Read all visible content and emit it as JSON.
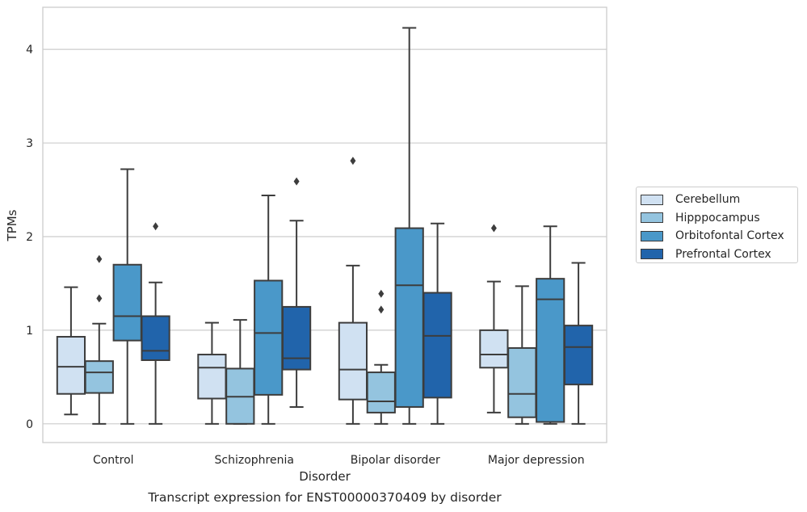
{
  "caption": "Transcript expression for ENST00000370409 by disorder",
  "chart_data": {
    "type": "box",
    "xlabel": "Disorder",
    "ylabel": "TPMs",
    "ylim": [
      -0.2,
      4.45
    ],
    "yticks": [
      0,
      1,
      2,
      3,
      4
    ],
    "categories": [
      "Control",
      "Schizophrenia",
      "Bipolar disorder",
      "Major depression"
    ],
    "grid": "horizontal",
    "legend_position": "right",
    "series": [
      {
        "name": "Cerebellum",
        "color": "#d0e1f2",
        "boxes": [
          {
            "whislo": 0.1,
            "q1": 0.32,
            "med": 0.61,
            "q3": 0.93,
            "whishi": 1.46,
            "fliers": []
          },
          {
            "whislo": 0.0,
            "q1": 0.27,
            "med": 0.6,
            "q3": 0.74,
            "whishi": 1.08,
            "fliers": []
          },
          {
            "whislo": 0.0,
            "q1": 0.26,
            "med": 0.58,
            "q3": 1.08,
            "whishi": 1.69,
            "fliers": [
              2.81
            ]
          },
          {
            "whislo": 0.12,
            "q1": 0.6,
            "med": 0.74,
            "q3": 1.0,
            "whishi": 1.52,
            "fliers": [
              2.09
            ]
          }
        ]
      },
      {
        "name": "Hipppocampus",
        "color": "#94c4df",
        "boxes": [
          {
            "whislo": 0.0,
            "q1": 0.33,
            "med": 0.55,
            "q3": 0.67,
            "whishi": 1.07,
            "fliers": [
              1.34,
              1.76
            ]
          },
          {
            "whislo": 0.0,
            "q1": 0.0,
            "med": 0.29,
            "q3": 0.59,
            "whishi": 1.11,
            "fliers": []
          },
          {
            "whislo": 0.0,
            "q1": 0.12,
            "med": 0.24,
            "q3": 0.55,
            "whishi": 0.63,
            "fliers": [
              1.22,
              1.39
            ]
          },
          {
            "whislo": 0.0,
            "q1": 0.07,
            "med": 0.32,
            "q3": 0.81,
            "whishi": 1.47,
            "fliers": []
          }
        ]
      },
      {
        "name": "Orbitofontal Cortex",
        "color": "#4a98c9",
        "boxes": [
          {
            "whislo": 0.0,
            "q1": 0.89,
            "med": 1.15,
            "q3": 1.7,
            "whishi": 2.72,
            "fliers": []
          },
          {
            "whislo": 0.0,
            "q1": 0.31,
            "med": 0.97,
            "q3": 1.53,
            "whishi": 2.44,
            "fliers": []
          },
          {
            "whislo": 0.0,
            "q1": 0.18,
            "med": 1.48,
            "q3": 2.09,
            "whishi": 4.23,
            "fliers": []
          },
          {
            "whislo": 0.0,
            "q1": 0.02,
            "med": 1.33,
            "q3": 1.55,
            "whishi": 2.11,
            "fliers": []
          }
        ]
      },
      {
        "name": "Prefrontal Cortex",
        "color": "#2164ab",
        "boxes": [
          {
            "whislo": 0.0,
            "q1": 0.68,
            "med": 0.78,
            "q3": 1.15,
            "whishi": 1.51,
            "fliers": [
              2.11
            ]
          },
          {
            "whislo": 0.18,
            "q1": 0.58,
            "med": 0.7,
            "q3": 1.25,
            "whishi": 2.17,
            "fliers": [
              2.59
            ]
          },
          {
            "whislo": 0.0,
            "q1": 0.28,
            "med": 0.94,
            "q3": 1.4,
            "whishi": 2.14,
            "fliers": []
          },
          {
            "whislo": 0.0,
            "q1": 0.42,
            "med": 0.82,
            "q3": 1.05,
            "whishi": 1.72,
            "fliers": []
          }
        ]
      }
    ]
  }
}
